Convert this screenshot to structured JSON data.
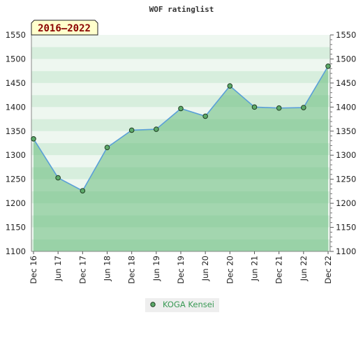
{
  "title": "WOF ratinglist",
  "badge": "2016–2022",
  "chart_data": {
    "type": "area",
    "title": "WOF ratinglist",
    "x_labels": [
      "Dec 16",
      "Jun 17",
      "Dec 17",
      "Jun 18",
      "Dec 18",
      "Jun 19",
      "Dec 19",
      "Jun 20",
      "Dec 20",
      "Jun 21",
      "Dec 21",
      "Jun 22",
      "Dec 22"
    ],
    "ylim": [
      1100,
      1550
    ],
    "y_ticks": [
      1100,
      1150,
      1200,
      1250,
      1300,
      1350,
      1400,
      1450,
      1500,
      1550
    ],
    "series": [
      {
        "name": "KOGA Kensei",
        "values": [
          1334,
          1253,
          1226,
          1316,
          1352,
          1354,
          1397,
          1381,
          1444,
          1400,
          1398,
          1399,
          1485
        ]
      }
    ],
    "legend_position": "bottom",
    "grid": false,
    "colors": {
      "line": "#5a9fd8",
      "marker_fill": "#5daa6a",
      "marker_stroke": "#1f3d22",
      "area_fill": "#66bb7a",
      "band_light": "#eef7f0",
      "band_dark": "#d7eedd",
      "badge_fill": "#ffffcc",
      "badge_text": "#8b0000"
    }
  }
}
